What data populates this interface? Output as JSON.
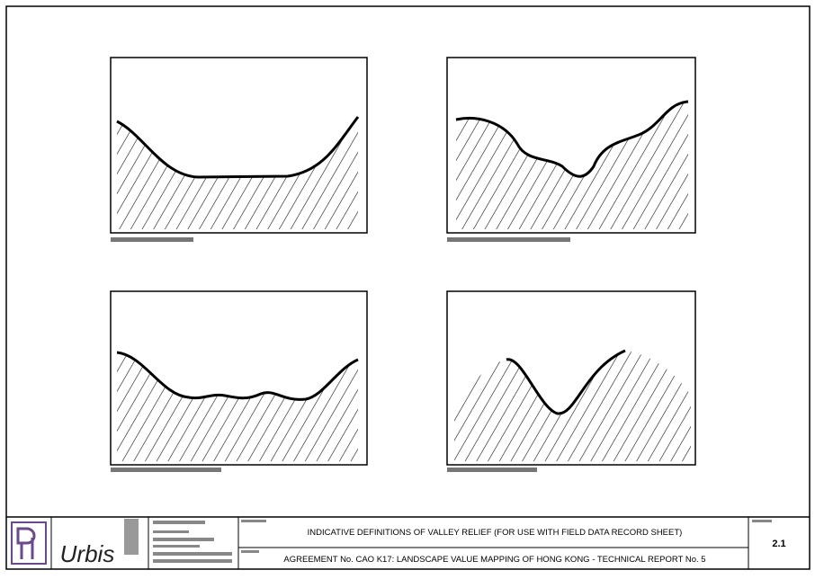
{
  "title_block": {
    "title": "INDICATIVE DEFINITIONS OF VALLEY RELIEF (FOR USE WITH FIELD DATA RECORD SHEET)",
    "report": "AGREEMENT No. CAO K17: LANDSCAPE VALUE MAPPING OF HONG KONG - TECHNICAL REPORT No. 5",
    "figure_number": "2.1",
    "logo_text": "Urbis"
  }
}
